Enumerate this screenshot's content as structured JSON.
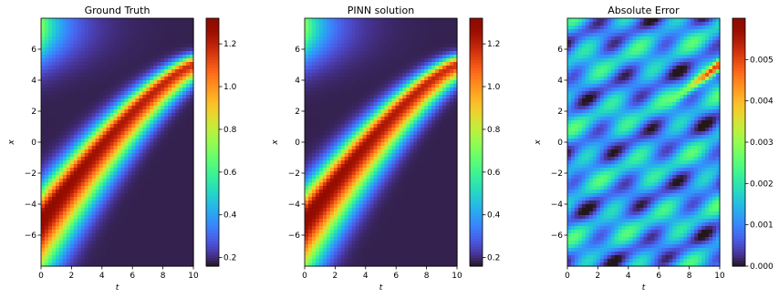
{
  "chart_data": [
    {
      "type": "heatmap",
      "title": "Ground Truth",
      "xlabel": "t",
      "ylabel": "x",
      "xlim": [
        0,
        10
      ],
      "ylim": [
        -8,
        8
      ],
      "xticks": [
        "0",
        "2",
        "4",
        "6",
        "8",
        "10"
      ],
      "yticks": [
        "−6",
        "−4",
        "−2",
        "0",
        "2",
        "4",
        "6"
      ],
      "colorbar": {
        "range": [
          0.16,
          1.32
        ],
        "ticks": [
          "0.2",
          "0.4",
          "0.6",
          "0.8",
          "1.0",
          "1.2"
        ]
      },
      "colormap": "turbo",
      "field": {
        "kind": "moving-peak",
        "peak_start_x": -5.0,
        "peak_end_x": 5.0,
        "peak_value": 1.3,
        "min_value": 0.18
      }
    },
    {
      "type": "heatmap",
      "title": "PINN solution",
      "xlabel": "t",
      "ylabel": "x",
      "xlim": [
        0,
        10
      ],
      "ylim": [
        -8,
        8
      ],
      "xticks": [
        "0",
        "2",
        "4",
        "6",
        "8",
        "10"
      ],
      "yticks": [
        "−6",
        "−4",
        "−2",
        "0",
        "2",
        "4",
        "6"
      ],
      "colorbar": {
        "range": [
          0.16,
          1.32
        ],
        "ticks": [
          "0.2",
          "0.4",
          "0.6",
          "0.8",
          "1.0",
          "1.2"
        ]
      },
      "colormap": "turbo",
      "field": {
        "kind": "moving-peak",
        "peak_start_x": -5.0,
        "peak_end_x": 5.0,
        "peak_value": 1.3,
        "min_value": 0.18
      }
    },
    {
      "type": "heatmap",
      "title": "Absolute Error",
      "xlabel": "t",
      "ylabel": "x",
      "xlim": [
        0,
        10
      ],
      "ylim": [
        -8,
        8
      ],
      "xticks": [
        "0",
        "2",
        "4",
        "6",
        "8",
        "10"
      ],
      "yticks": [
        "−6",
        "−4",
        "−2",
        "0",
        "2",
        "4",
        "6"
      ],
      "colorbar": {
        "range": [
          0,
          0.006
        ],
        "ticks": [
          "0.000",
          "0.001",
          "0.002",
          "0.003",
          "0.004",
          "0.005"
        ]
      },
      "colormap": "turbo",
      "field": {
        "kind": "error",
        "max_error": 0.0055,
        "ridge_start": [
          6.5,
          2.4
        ],
        "ridge_end": [
          10,
          5.0
        ]
      }
    }
  ]
}
